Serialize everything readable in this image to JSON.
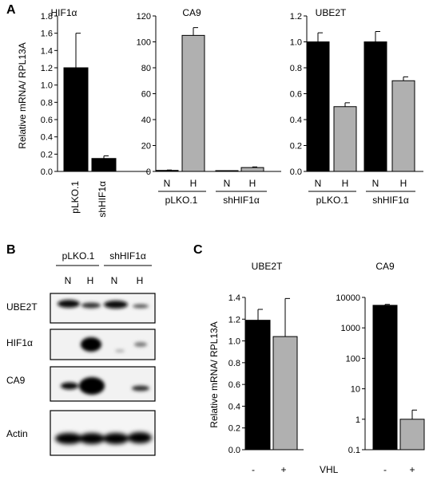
{
  "chart_data": [
    {
      "type": "bar",
      "panel": "A",
      "title": "HIF1α",
      "ylabel": "Relative  mRNA/ RPL13A",
      "ylim": [
        0,
        1.8
      ],
      "yticks": [
        "0.0",
        "0.2",
        "0.4",
        "0.6",
        "0.8",
        "1.0",
        "1.2",
        "1.4",
        "1.6",
        "1.8"
      ],
      "categories": [
        "pLKO.1",
        "shHIF1α"
      ],
      "values": [
        1.2,
        0.15
      ],
      "errors": [
        0.4,
        0.03
      ],
      "colors": [
        "#000000",
        "#000000"
      ]
    },
    {
      "type": "bar",
      "title": "CA9",
      "ylim": [
        0,
        120
      ],
      "yticks": [
        "0",
        "20",
        "40",
        "60",
        "80",
        "100",
        "120"
      ],
      "conditions": [
        "N",
        "H",
        "N",
        "H"
      ],
      "groups": [
        "pLKO.1",
        "shHIF1α"
      ],
      "values": [
        0.8,
        105,
        0.3,
        3
      ],
      "errors": [
        0.3,
        6,
        0.2,
        0.5
      ],
      "colors": [
        "#000000",
        "#b0b0b0",
        "#000000",
        "#b0b0b0"
      ]
    },
    {
      "type": "bar",
      "title": "UBE2T",
      "ylim": [
        0,
        1.2
      ],
      "yticks": [
        "0.0",
        "0.2",
        "0.4",
        "0.6",
        "0.8",
        "1.0",
        "1.2"
      ],
      "conditions": [
        "N",
        "H",
        "N",
        "H"
      ],
      "groups": [
        "pLKO.1",
        "shHIF1α"
      ],
      "values": [
        1.0,
        0.5,
        1.0,
        0.7
      ],
      "errors": [
        0.07,
        0.03,
        0.08,
        0.03
      ],
      "colors": [
        "#000000",
        "#b0b0b0",
        "#000000",
        "#b0b0b0"
      ]
    },
    {
      "type": "bar",
      "panel": "C",
      "title": "UBE2T",
      "ylabel": "Relative  mRNA/ RPL13A",
      "ylim": [
        0,
        1.4
      ],
      "yticks": [
        "0.0",
        "0.2",
        "0.4",
        "0.6",
        "0.8",
        "1.0",
        "1.2",
        "1.4"
      ],
      "categories": [
        "-",
        "+"
      ],
      "values": [
        1.19,
        1.04
      ],
      "errors": [
        0.1,
        0.35
      ],
      "colors": [
        "#000000",
        "#b0b0b0"
      ]
    },
    {
      "type": "bar",
      "title": "CA9",
      "scale": "log",
      "ylim": [
        0.1,
        10000
      ],
      "yticks": [
        "0.1",
        "1",
        "10",
        "100",
        "1000",
        "10000"
      ],
      "categories": [
        "-",
        "+"
      ],
      "values": [
        5500,
        1.0
      ],
      "errors": [
        400,
        1.0
      ],
      "colors": [
        "#000000",
        "#b0b0b0"
      ],
      "xlabel": "VHL"
    }
  ],
  "blot": {
    "panel": "B",
    "groups": [
      "pLKO.1",
      "shHIF1α"
    ],
    "lanes": [
      "N",
      "H",
      "N",
      "H"
    ],
    "rows": [
      "UBE2T",
      "HIF1α",
      "CA9",
      "Actin"
    ]
  }
}
